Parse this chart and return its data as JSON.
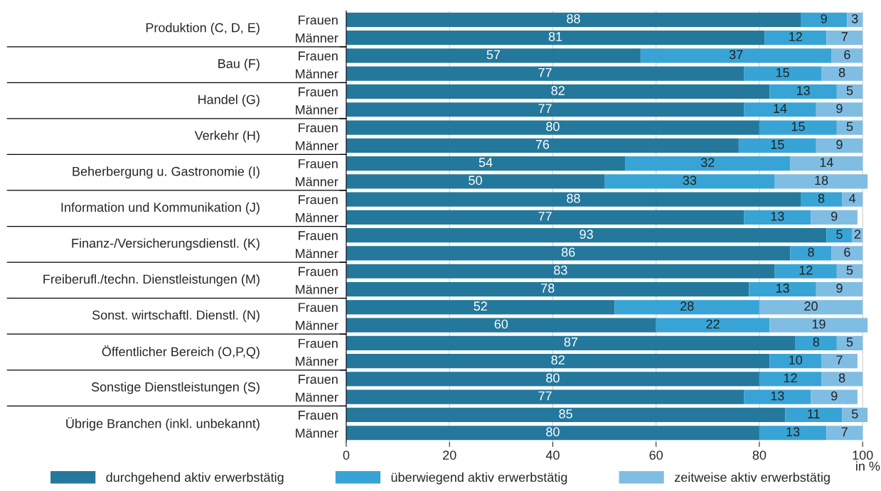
{
  "chart_data": {
    "type": "bar",
    "orientation": "horizontal",
    "stacked": true,
    "data_labels": true,
    "categories": [
      "Frauen",
      "Männer",
      "Frauen",
      "Männer",
      "Frauen",
      "Männer",
      "Frauen",
      "Männer",
      "Frauen",
      "Männer",
      "Frauen",
      "Männer",
      "Frauen",
      "Männer",
      "Frauen",
      "Männer",
      "Frauen",
      "Männer",
      "Frauen",
      "Männer",
      "Frauen",
      "Männer",
      "Frauen",
      "Männer"
    ],
    "annotations": [
      "Produktion (C, D, E)",
      "Bau (F)",
      "Handel (G)",
      "Verkehr (H)",
      "Beherbergung u. Gastronomie (I)",
      "Information und Kommunikation (J)",
      "Finanz-/Versicherungsdienstl. (K)",
      "Freiberufl./techn. Dienstleistungen (M)",
      "Sonst. wirtschaftl. Dienstl. (N)",
      "Öffentlicher Bereich (O,P,Q)",
      "Sonstige Dienstleistungen (S)",
      "Übrige Branchen (inkl. unbekannt)"
    ],
    "series": [
      {
        "name": "durchgehend aktiv erwerbstätig",
        "color": "#24789c",
        "values": [
          88,
          81,
          57,
          77,
          82,
          77,
          80,
          76,
          54,
          50,
          88,
          77,
          93,
          86,
          83,
          78,
          52,
          60,
          87,
          82,
          80,
          77,
          85,
          80
        ]
      },
      {
        "name": "überwiegend aktiv erwerbstätig",
        "color": "#38a4d6",
        "values": [
          9,
          12,
          37,
          15,
          13,
          14,
          15,
          15,
          32,
          33,
          8,
          13,
          5,
          8,
          12,
          13,
          28,
          22,
          8,
          10,
          12,
          13,
          11,
          13
        ]
      },
      {
        "name": "zeitweise aktiv erwerbstätig",
        "color": "#80bde3",
        "values": [
          3,
          7,
          6,
          8,
          5,
          9,
          5,
          9,
          14,
          18,
          4,
          9,
          2,
          6,
          5,
          9,
          20,
          19,
          5,
          7,
          8,
          9,
          5,
          7
        ]
      }
    ],
    "xlabel": "in %",
    "xlim": [
      0,
      101
    ],
    "xticks": [
      0,
      20,
      40,
      60,
      80,
      100
    ],
    "grid": "x",
    "legend": "bottom"
  }
}
